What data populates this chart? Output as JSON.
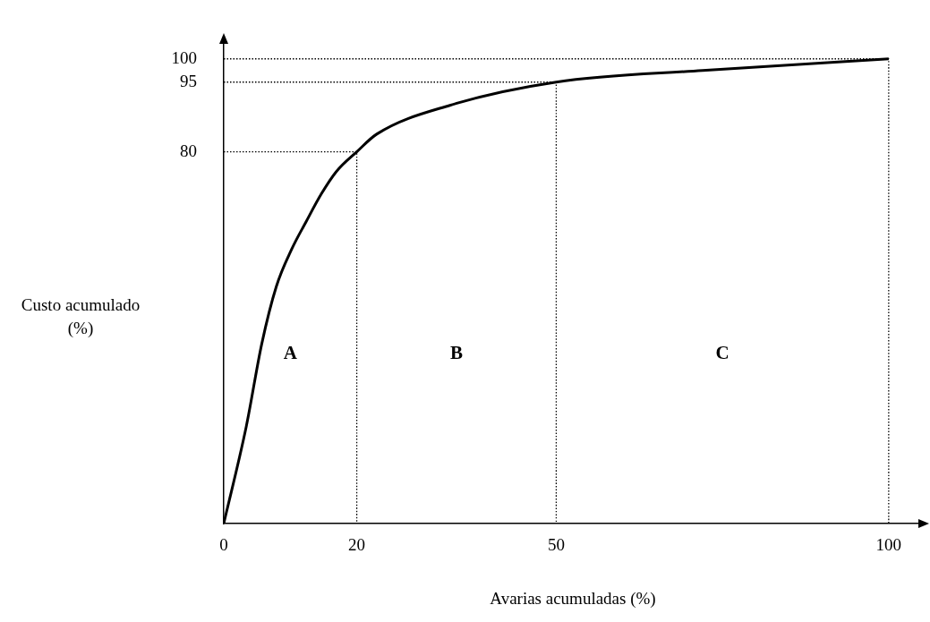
{
  "chart_data": {
    "type": "line",
    "xlabel": "Avarias acumuladas (%)",
    "ylabel": "Custo acumulado\n(%)",
    "xlim": [
      0,
      105
    ],
    "ylim": [
      0,
      104
    ],
    "xticks": [
      0,
      20,
      50,
      100
    ],
    "yticks": [
      80,
      95,
      100
    ],
    "grid": false,
    "legend": false,
    "marker": "none",
    "series": [
      {
        "x": [
          0,
          3.4,
          5.7,
          7.9,
          10.2,
          12.4,
          14.7,
          16.9,
          20,
          23,
          34,
          50,
          72,
          100
        ],
        "values": [
          0,
          21,
          38.6,
          51,
          59,
          65,
          71,
          75.7,
          80,
          83.8,
          90,
          95,
          97.5,
          100
        ],
        "color": "#000000",
        "line_style": "solid"
      },
      {
        "x": [
          0,
          20,
          20
        ],
        "values": [
          80,
          80,
          0
        ],
        "color": "#000000",
        "line_style": "dotted"
      },
      {
        "x": [
          0,
          50,
          50
        ],
        "values": [
          95,
          95,
          0
        ],
        "color": "#000000",
        "line_style": "dotted"
      },
      {
        "x": [
          0,
          100,
          100
        ],
        "values": [
          100,
          100,
          0
        ],
        "color": "#000000",
        "line_style": "dotted"
      }
    ],
    "annotations": [
      "A",
      "B",
      "C"
    ]
  }
}
